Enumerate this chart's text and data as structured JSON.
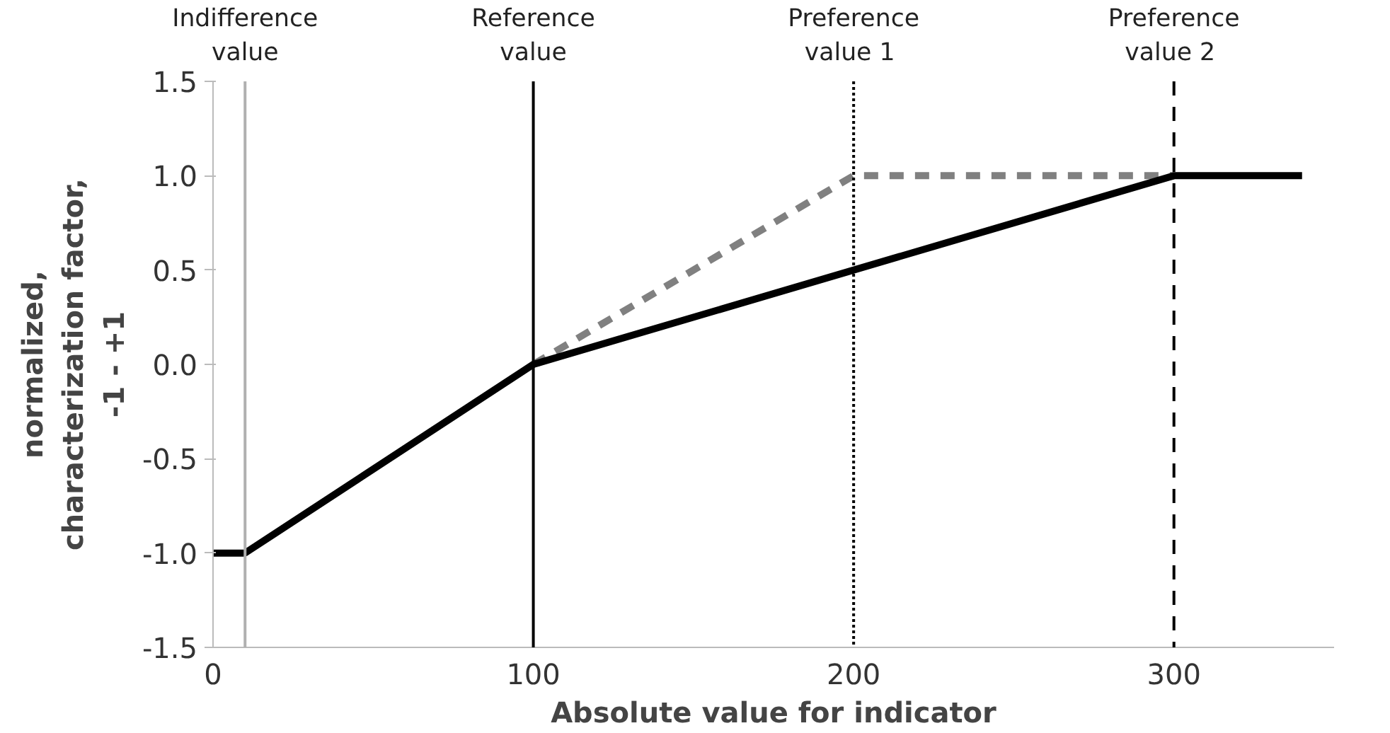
{
  "chart_data": {
    "type": "line",
    "xlabel": "Absolute value for indicator",
    "ylabel": "normalized,\ncharacterization factor,\n-1 - +1",
    "xlim": [
      0,
      350
    ],
    "xticks": [
      0,
      100,
      200,
      300
    ],
    "ylim": [
      -1.5,
      1.5
    ],
    "yticks": [
      -1.5,
      {
        "value": -1,
        "label": "-1.0"
      },
      -0.5,
      {
        "value": 0,
        "label": "0.0"
      },
      0.5,
      {
        "value": 1,
        "label": "1.0"
      },
      1.5
    ],
    "grid": false,
    "series": [
      {
        "color": "#808080",
        "line_style": "dashed",
        "x": [
          100,
          200,
          300
        ],
        "values": [
          0,
          1,
          1
        ]
      },
      {
        "color": "#000000",
        "line_style": "solid",
        "x": [
          0,
          10,
          100,
          300,
          340
        ],
        "values": [
          -1,
          -1,
          0,
          1,
          1
        ]
      }
    ],
    "ref_lines": [
      {
        "axis": "x",
        "value": 10,
        "label": "Indifference\nvalue",
        "color": "#b0b0b0",
        "line_style": "solid"
      },
      {
        "axis": "x",
        "value": 100,
        "label": "Reference\nvalue",
        "color": "#000000",
        "line_style": "solid"
      },
      {
        "axis": "x",
        "value": 200,
        "label": "Preference\nvalue  1",
        "color": "#000000",
        "line_style": "dotted"
      },
      {
        "axis": "x",
        "value": 300,
        "label": "Preference\nvalue  2",
        "color": "#000000",
        "line_style": "dashed"
      }
    ]
  }
}
